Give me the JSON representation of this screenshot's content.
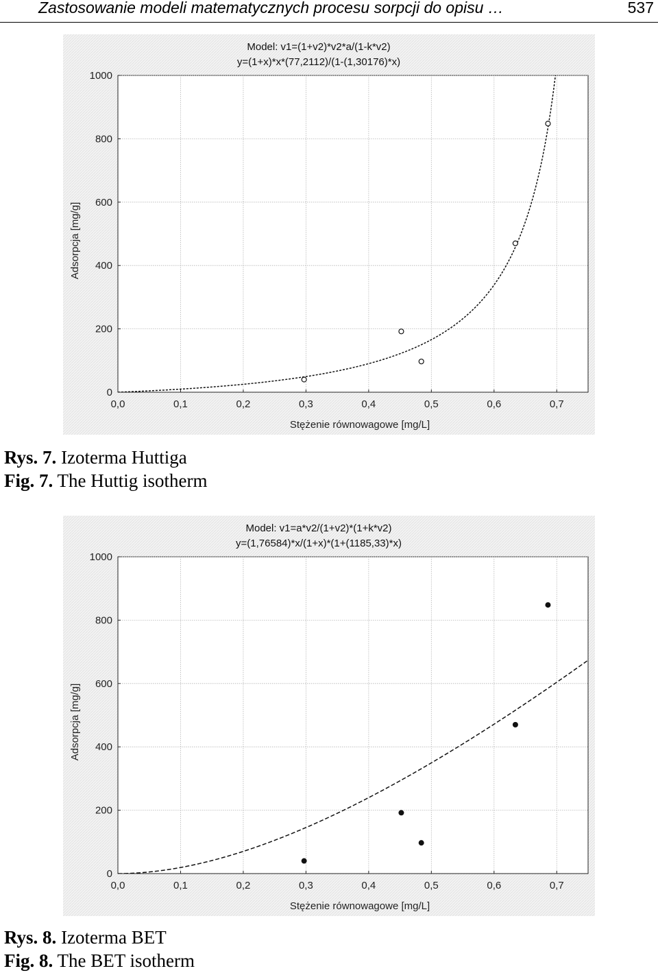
{
  "header": {
    "title": "Zastosowanie modeli matematycznych procesu sorpcji do opisu …",
    "page_number": "537"
  },
  "chart_data": [
    {
      "id": "fig7",
      "type": "scatter",
      "model_line1": "Model: v1=(1+v2)*v2*a/(1-k*v2)",
      "model_line2": "y=(1+x)*x*(77,2112)/(1-(1,30176)*x)",
      "xlabel": "Stężenie równowagowe [mg/L]",
      "ylabel": "Adsorpcja [mg/g]",
      "xlim": [
        0,
        0.75
      ],
      "ylim": [
        0,
        1000
      ],
      "xticks": [
        "0,0",
        "0,1",
        "0,2",
        "0,3",
        "0,4",
        "0,5",
        "0,6",
        "0,7"
      ],
      "yticks": [
        "0",
        "200",
        "400",
        "600",
        "800",
        "1000"
      ],
      "grid": true,
      "marker": "open-circle",
      "points": [
        {
          "x": 0.297,
          "y": 40
        },
        {
          "x": 0.452,
          "y": 192
        },
        {
          "x": 0.484,
          "y": 97
        },
        {
          "x": 0.634,
          "y": 470
        },
        {
          "x": 0.686,
          "y": 848
        }
      ],
      "model": {
        "kind": "huttig",
        "a": 77.2112,
        "k": 1.30176
      },
      "caption_pl_label": "Rys. 7.",
      "caption_pl_text": "Izoterma Huttiga",
      "caption_en_label": "Fig. 7.",
      "caption_en_text": "The Huttig isotherm"
    },
    {
      "id": "fig8",
      "type": "scatter",
      "model_line1": "Model: v1=a*v2/(1+v2)*(1+k*v2)",
      "model_line2": "y=(1,76584)*x/(1+x)*(1+(1185,33)*x)",
      "xlabel": "Stężenie równowagowe [mg/L]",
      "ylabel": "Adsorpcja [mg/g]",
      "xlim": [
        0,
        0.75
      ],
      "ylim": [
        0,
        1000
      ],
      "xticks": [
        "0,0",
        "0,1",
        "0,2",
        "0,3",
        "0,4",
        "0,5",
        "0,6",
        "0,7"
      ],
      "yticks": [
        "0",
        "200",
        "400",
        "600",
        "800",
        "1000"
      ],
      "grid": true,
      "marker": "filled-circle",
      "points": [
        {
          "x": 0.297,
          "y": 40
        },
        {
          "x": 0.452,
          "y": 192
        },
        {
          "x": 0.484,
          "y": 97
        },
        {
          "x": 0.634,
          "y": 470
        },
        {
          "x": 0.686,
          "y": 848
        }
      ],
      "model": {
        "kind": "bet",
        "a": 1.76584,
        "k": 1185.33
      },
      "caption_pl_label": "Rys. 8.",
      "caption_pl_text": "Izoterma BET",
      "caption_en_label": "Fig. 8.",
      "caption_en_text": "The BET isotherm"
    }
  ]
}
